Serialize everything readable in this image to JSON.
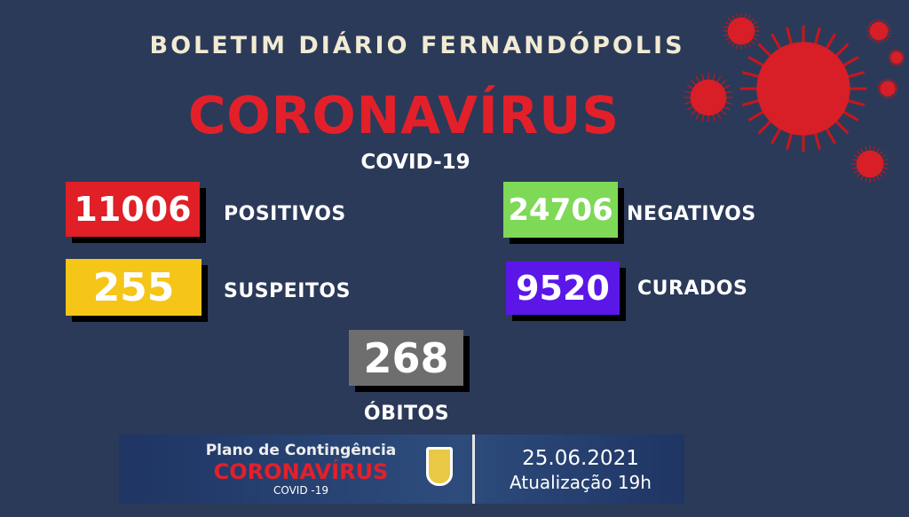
{
  "header": {
    "title": "BOLETIM DIÁRIO FERNANDÓPOLIS",
    "headline": "CORONAVÍRUS",
    "subtitle": "COVID-19"
  },
  "stats": {
    "positivos": {
      "value": "11006",
      "label": "POSITIVOS",
      "color": "#e01f26"
    },
    "suspeitos": {
      "value": "255",
      "label": "SUSPEITOS",
      "color": "#f5c518"
    },
    "negativos": {
      "value": "24706",
      "label": "NEGATIVOS",
      "color": "#7ed957"
    },
    "curados": {
      "value": "9520",
      "label": "CURADOS",
      "color": "#5a17e8"
    },
    "obitos": {
      "value": "268",
      "label": "ÓBITOS",
      "color": "#6e6e6e"
    }
  },
  "banner": {
    "line1": "Plano de Contingência",
    "line2": "CORONAVÍRUS",
    "line3": "COVID -19",
    "date": "25.06.2021",
    "update": "Atualização 19h"
  }
}
